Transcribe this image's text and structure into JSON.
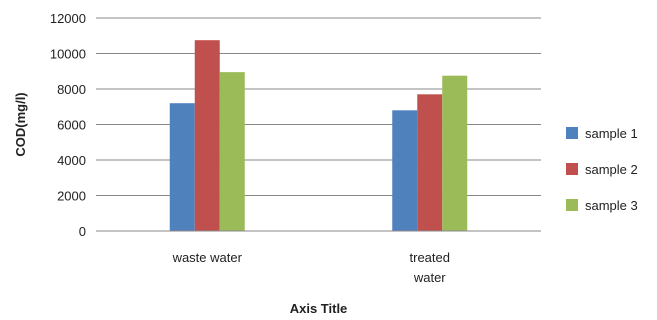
{
  "chart_data": {
    "type": "bar",
    "title": "",
    "xlabel": "Axis Title",
    "ylabel": "COD(mg/l)",
    "ylim": [
      0,
      12000
    ],
    "yticks": [
      0,
      2000,
      4000,
      6000,
      8000,
      10000,
      12000
    ],
    "grid": true,
    "legend_position": "right",
    "categories": [
      {
        "lines": [
          "waste water"
        ]
      },
      {
        "lines": [
          "treated",
          "water"
        ]
      }
    ],
    "series": [
      {
        "name": "sample 1",
        "color": "#4f81bd",
        "values": [
          7200,
          6800
        ]
      },
      {
        "name": "sample 2",
        "color": "#c0504d",
        "values": [
          10750,
          7700
        ]
      },
      {
        "name": "sample 3",
        "color": "#9bbb59",
        "values": [
          8950,
          8750
        ]
      }
    ]
  }
}
